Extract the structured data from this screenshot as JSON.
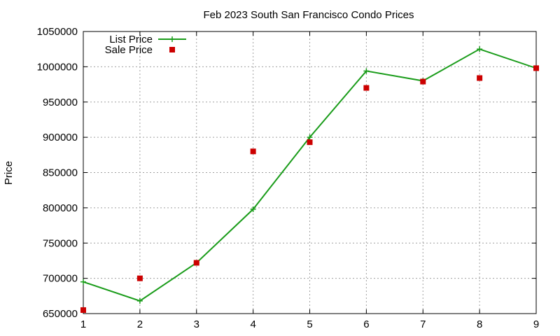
{
  "chart_data": {
    "type": "line",
    "title": "Feb 2023 South San Francisco Condo Prices",
    "xlabel": "",
    "ylabel": "Price",
    "x": [
      1,
      2,
      3,
      4,
      5,
      6,
      7,
      8,
      9
    ],
    "xlim": [
      1,
      9
    ],
    "ylim": [
      650000,
      1050000
    ],
    "x_ticks": [
      "1",
      "2",
      "3",
      "4",
      "5",
      "6",
      "7",
      "8",
      "9"
    ],
    "y_ticks": [
      "650000",
      "700000",
      "750000",
      "800000",
      "850000",
      "900000",
      "950000",
      "1000000",
      "1050000"
    ],
    "grid": true,
    "legend_position": "top-left",
    "series": [
      {
        "name": "List Price",
        "style": "line-points",
        "marker": "plus",
        "color": "#1a9c1a",
        "values": [
          695000,
          668000,
          722000,
          798000,
          900000,
          994000,
          980000,
          1025000,
          998000
        ]
      },
      {
        "name": "Sale Price",
        "style": "points",
        "marker": "square",
        "color": "#cc0000",
        "values": [
          655000,
          700000,
          722000,
          880000,
          893000,
          970000,
          979000,
          984000,
          998000
        ]
      }
    ]
  }
}
